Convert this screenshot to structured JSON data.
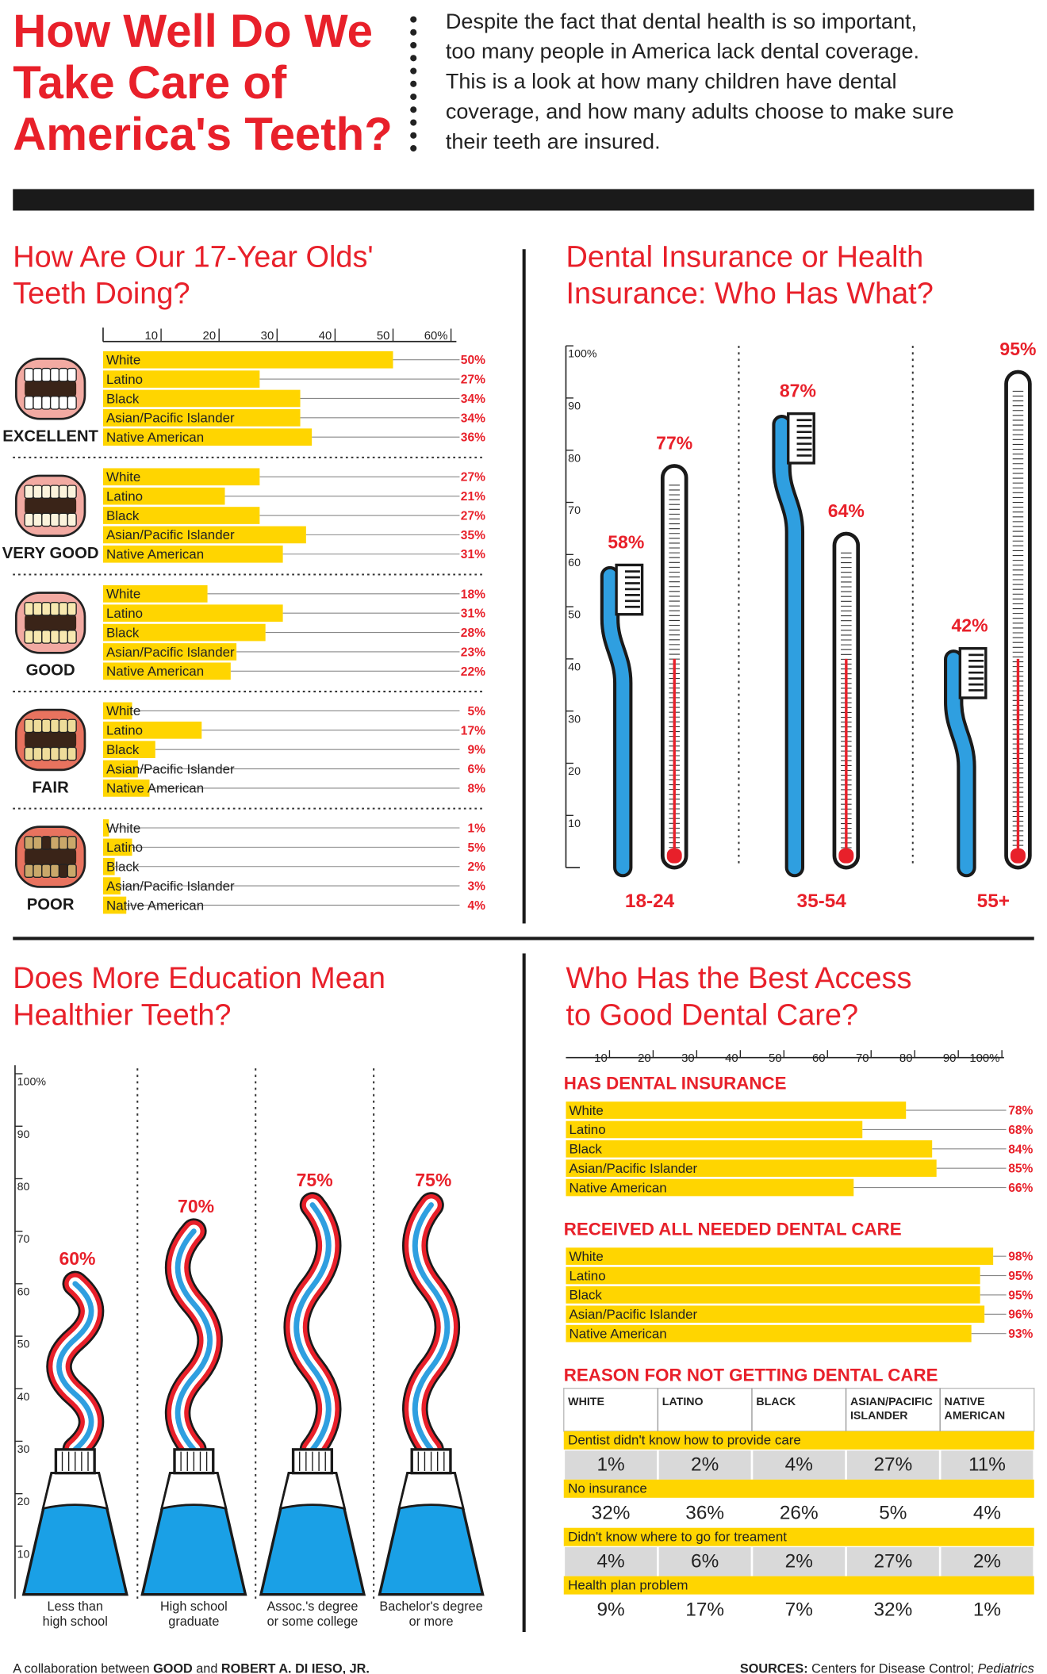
{
  "header": {
    "title": [
      "How Well Do We",
      "Take Care of",
      "America's Teeth?"
    ],
    "intro": [
      "Despite the fact that dental health is so important,",
      "too many people in America lack dental coverage.",
      "This is a look at how many children have dental",
      "coverage, and how many adults choose to make sure",
      "their teeth are insured."
    ]
  },
  "chart_data": [
    {
      "type": "bar",
      "title": [
        "How Are Our 17-Year Olds'",
        "Teeth Doing?"
      ],
      "categories": [
        "EXCELLENT",
        "VERY GOOD",
        "GOOD",
        "FAIR",
        "POOR"
      ],
      "series": [
        {
          "name": "White",
          "color": "#ffd500",
          "values": [
            50,
            27,
            18,
            5,
            1
          ],
          "value_labels": [
            "50%",
            "27%",
            "18%",
            "5%",
            "1%"
          ]
        },
        {
          "name": "Latino",
          "color": "#ffd500",
          "values": [
            27,
            21,
            31,
            17,
            5
          ],
          "value_labels": [
            "27%",
            "21%",
            "31%",
            "17%",
            "5%"
          ]
        },
        {
          "name": "Black",
          "color": "#ffd500",
          "values": [
            34,
            27,
            28,
            9,
            2
          ],
          "value_labels": [
            "34%",
            "27%",
            "28%",
            "9%",
            "2%"
          ]
        },
        {
          "name": "Asian/Pacific Islander",
          "color": "#ffd500",
          "values": [
            34,
            35,
            23,
            6,
            3
          ],
          "value_labels": [
            "34%",
            "35%",
            "23%",
            "6%",
            "3%"
          ]
        },
        {
          "name": "Native American",
          "color": "#ffd500",
          "values": [
            36,
            31,
            22,
            8,
            4
          ],
          "value_labels": [
            "36%",
            "31%",
            "22%",
            "8%",
            "4%"
          ]
        }
      ],
      "xlim": [
        0,
        60
      ],
      "xticks": [
        10,
        20,
        30,
        40,
        50,
        {
          "value": 60,
          "label": "60%"
        }
      ]
    },
    {
      "type": "brush-thermometer",
      "title": [
        "Dental Insurance or Health",
        "Insurance: Who Has What?"
      ],
      "categories": [
        "18-24",
        "35-54",
        "55+"
      ],
      "series": [
        {
          "color": "#2f9fe0",
          "values": [
            58,
            87,
            42
          ],
          "value_labels": [
            "58%",
            "87%",
            "42%"
          ]
        },
        {
          "color": "#e8202a",
          "values": [
            77,
            64,
            95
          ],
          "value_labels": [
            "77%",
            "64%",
            "95%"
          ]
        }
      ],
      "ylim": [
        0,
        100
      ],
      "yticks": [
        10,
        20,
        30,
        40,
        50,
        60,
        70,
        80,
        90,
        {
          "value": 100,
          "label": "100%"
        }
      ]
    },
    {
      "type": "toothpaste",
      "title": [
        "Does More Education Mean",
        "Healthier Teeth?"
      ],
      "categories": [
        [
          "Less than",
          "high school"
        ],
        [
          "High school",
          "graduate"
        ],
        [
          "Assoc.'s degree",
          "or some college"
        ],
        [
          "Bachelor's degree",
          "or more"
        ]
      ],
      "values": [
        60,
        70,
        75,
        75
      ],
      "value_labels": [
        "60%",
        "70%",
        "75%",
        "75%"
      ],
      "color": "#e8202a",
      "ylim": [
        0,
        100
      ],
      "yticks": [
        10,
        20,
        30,
        40,
        50,
        60,
        70,
        80,
        90,
        {
          "value": 100,
          "label": "100%"
        }
      ]
    },
    {
      "type": "bar",
      "title": [
        "Who Has the Best Access",
        "to Good Dental Care?"
      ],
      "categories": [
        "White",
        "Latino",
        "Black",
        "Asian/Pacific Islander",
        "Native American"
      ],
      "series": [
        {
          "name": "HAS DENTAL INSURANCE",
          "color": "#ffd500",
          "values": [
            78,
            68,
            84,
            85,
            66
          ],
          "value_labels": [
            "78%",
            "68%",
            "84%",
            "85%",
            "66%"
          ]
        },
        {
          "name": "RECEIVED ALL NEEDED DENTAL CARE",
          "color": "#ffd500",
          "values": [
            98,
            95,
            95,
            96,
            93
          ],
          "value_labels": [
            "98%",
            "95%",
            "95%",
            "96%",
            "93%"
          ]
        }
      ],
      "xlim": [
        0,
        100
      ],
      "xticks": [
        10,
        20,
        30,
        40,
        50,
        60,
        70,
        80,
        90,
        {
          "value": 100,
          "label": "100%"
        }
      ]
    }
  ],
  "table": {
    "title": "REASON FOR NOT GETTING DENTAL CARE",
    "columns": [
      [
        "WHITE"
      ],
      [
        "LATINO"
      ],
      [
        "BLACK"
      ],
      [
        "ASIAN/PACIFIC",
        "ISLANDER"
      ],
      [
        "NATIVE",
        "AMERICAN"
      ]
    ],
    "rows": [
      {
        "label": "Dentist didn't know how to provide care",
        "cells": [
          "1%",
          "2%",
          "4%",
          "27%",
          "11%"
        ]
      },
      {
        "label": "No insurance",
        "cells": [
          "32%",
          "36%",
          "26%",
          "5%",
          "4%"
        ]
      },
      {
        "label": "Didn't know where to go for treament",
        "cells": [
          "4%",
          "6%",
          "2%",
          "27%",
          "2%"
        ]
      },
      {
        "label": "Health plan problem",
        "cells": [
          "9%",
          "17%",
          "7%",
          "32%",
          "1%"
        ]
      }
    ]
  },
  "footer": {
    "credit": "A collaboration between",
    "org": "GOOD",
    "and": "and",
    "author": "ROBERT A. DI IESO, JR.",
    "sources_label": "SOURCES:",
    "sources": "Centers for Disease Control;",
    "journal": "Pediatrics"
  }
}
